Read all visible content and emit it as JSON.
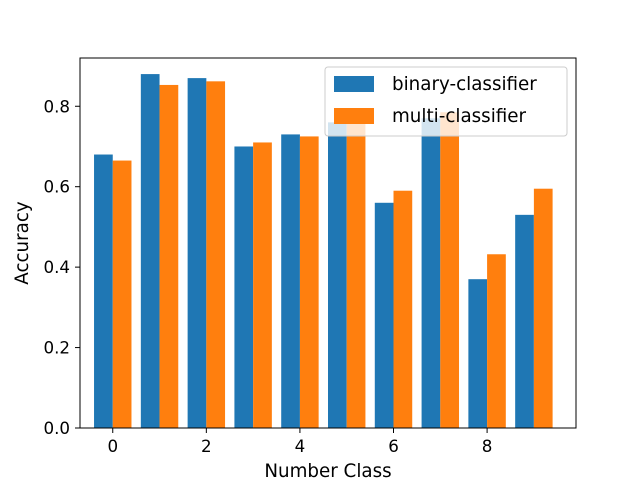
{
  "chart_data": {
    "type": "bar",
    "x": [
      0,
      1,
      2,
      3,
      4,
      5,
      6,
      7,
      8,
      9
    ],
    "series": [
      {
        "name": "binary-classifier",
        "color": "#1f77b4",
        "values": [
          0.68,
          0.88,
          0.87,
          0.7,
          0.73,
          0.76,
          0.56,
          0.77,
          0.37,
          0.53
        ]
      },
      {
        "name": "multi-classifier",
        "color": "#ff7f0e",
        "values": [
          0.665,
          0.853,
          0.862,
          0.71,
          0.725,
          0.76,
          0.59,
          0.785,
          0.432,
          0.595
        ]
      }
    ],
    "xlabel": "Number Class",
    "ylabel": "Accuracy",
    "xticks": [
      0,
      2,
      4,
      6,
      8
    ],
    "yticks": [
      0.0,
      0.2,
      0.4,
      0.6,
      0.8
    ],
    "xlim": [
      -0.7,
      9.9
    ],
    "ylim": [
      0,
      0.92
    ],
    "grid": false,
    "legend_position": "top-right"
  }
}
